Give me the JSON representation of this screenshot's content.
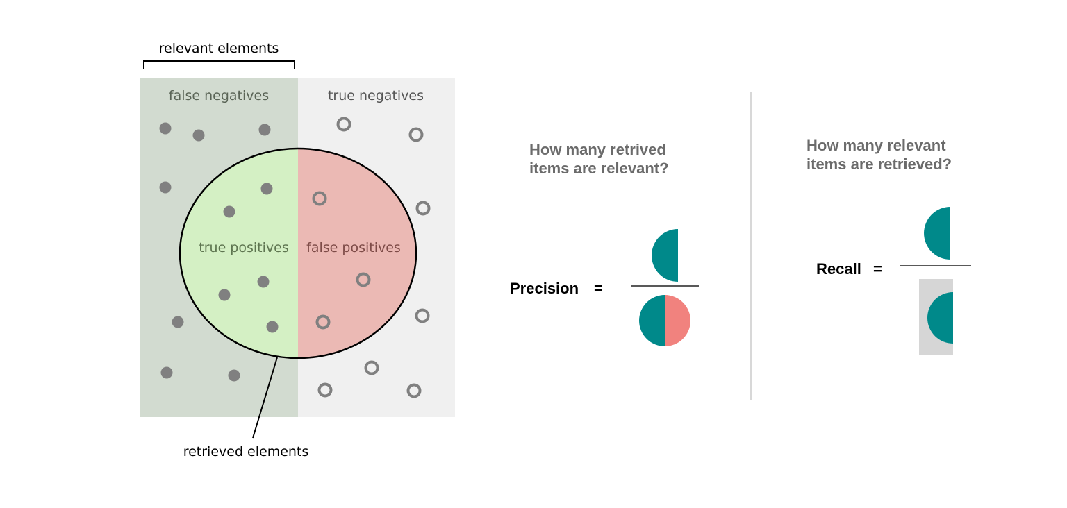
{
  "venn": {
    "bracket_label": "relevant elements",
    "false_negatives_label": "false negatives",
    "true_negatives_label": "true negatives",
    "true_positives_label": "true positives",
    "false_positives_label": "false positives",
    "pointer_label": "retrieved elements",
    "colors": {
      "relevant_region": "#d2dbd0",
      "irrelevant_region": "#f0f0f0",
      "true_positive_fill": "#d4f0c4",
      "false_positive_fill": "#ebb9b4",
      "relevant_dot": "#808080",
      "irrelevant_ring": "#808080"
    }
  },
  "precision": {
    "question_line1": "How many retrived",
    "question_line2": "items are relevant?",
    "label": "Precision",
    "equals": "="
  },
  "recall": {
    "question_line1": "How many relevant",
    "question_line2": "items are retrieved?",
    "label": "Recall",
    "equals": "="
  },
  "colors": {
    "teal": "#00898a",
    "salmon": "#f1827e",
    "question_text": "#6b6b6b",
    "recall_box": "#d6d6d6",
    "divider": "#cccccc"
  }
}
